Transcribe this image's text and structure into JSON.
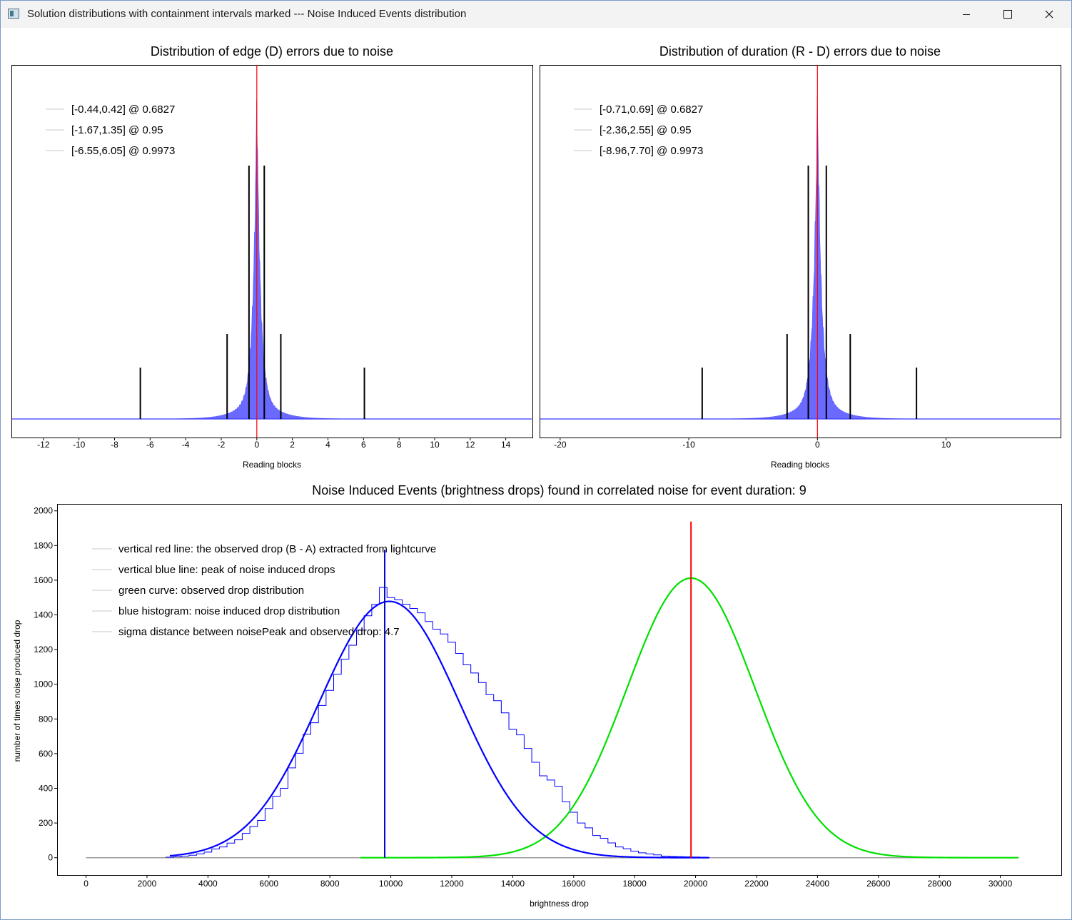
{
  "window": {
    "title": "Solution distributions with containment intervals marked --- Noise Induced Events distribution"
  },
  "chart_data": [
    {
      "type": "bar",
      "title": "Distribution of edge (D) errors due to noise",
      "xlabel": "Reading blocks",
      "ylabel": "",
      "xlim": [
        -13.8,
        15.5
      ],
      "xticks": [
        -12,
        -10,
        -8,
        -6,
        -4,
        -2,
        0,
        2,
        4,
        6,
        8,
        10,
        12,
        14
      ],
      "histogram_shape": {
        "center": 0.0,
        "core_width": 0.2,
        "tail_width": 0.9,
        "peak_frac": 0.9
      },
      "series_color": "#6a6aff",
      "legend": [
        {
          "text": "[-0.44,0.42] @ 0.6827"
        },
        {
          "text": "[-1.67,1.35] @ 0.95"
        },
        {
          "text": "[-6.55,6.05] @ 0.9973"
        }
      ],
      "intervals": [
        {
          "level": 0.6827,
          "lo": -0.44,
          "hi": 0.42
        },
        {
          "level": 0.95,
          "lo": -1.67,
          "hi": 1.35
        },
        {
          "level": 0.9973,
          "lo": -6.55,
          "hi": 6.05
        }
      ],
      "red_line_x": 0
    },
    {
      "type": "bar",
      "title": "Distribution of duration (R - D) errors due to noise",
      "xlabel": "Reading blocks",
      "ylabel": "",
      "xlim": [
        -21.6,
        18.9
      ],
      "xticks": [
        -20,
        -10,
        0,
        10
      ],
      "histogram_shape": {
        "center": 0.0,
        "core_width": 0.3,
        "tail_width": 1.3,
        "peak_frac": 0.9
      },
      "series_color": "#6a6aff",
      "legend": [
        {
          "text": "[-0.71,0.69] @ 0.6827"
        },
        {
          "text": "[-2.36,2.55] @ 0.95"
        },
        {
          "text": "[-8.96,7.70] @ 0.9973"
        }
      ],
      "intervals": [
        {
          "level": 0.6827,
          "lo": -0.71,
          "hi": 0.69
        },
        {
          "level": 0.95,
          "lo": -2.36,
          "hi": 2.55
        },
        {
          "level": 0.9973,
          "lo": -8.96,
          "hi": 7.7
        }
      ],
      "red_line_x": 0
    },
    {
      "type": "line",
      "title": "Noise Induced Events (brightness drops) found in correlated noise for event duration: 9",
      "xlabel": "brightness drop",
      "ylabel": "number of times noise produced drop",
      "xlim": [
        -950,
        32000
      ],
      "ylim": [
        -100,
        2040
      ],
      "xticks": [
        0,
        2000,
        4000,
        6000,
        8000,
        10000,
        12000,
        14000,
        16000,
        18000,
        20000,
        22000,
        24000,
        26000,
        28000,
        30000
      ],
      "yticks": [
        0,
        200,
        400,
        600,
        800,
        1000,
        1200,
        1400,
        1600,
        1800,
        2000
      ],
      "legend": [
        {
          "text": "vertical red line: the observed drop (B - A) extracted from lightcurve"
        },
        {
          "text": "vertical blue line: peak of noise induced drops"
        },
        {
          "text": "green curve: observed drop distribution"
        },
        {
          "text": "blue histogram: noise induced drop distribution"
        },
        {
          "text": "sigma distance between noisePeak and observed drop: 4.7"
        }
      ],
      "series": [
        {
          "name": "blue histogram",
          "color": "#0000ff",
          "step": 250,
          "x": [
            2750,
            3000,
            3250,
            3500,
            3750,
            4000,
            4250,
            4500,
            4750,
            5000,
            5250,
            5500,
            5750,
            6000,
            6250,
            6500,
            6750,
            7000,
            7250,
            7500,
            7750,
            8000,
            8250,
            8500,
            8750,
            9000,
            9250,
            9500,
            9750,
            10000,
            10250,
            10500,
            10750,
            11000,
            11250,
            11500,
            11750,
            12000,
            12250,
            12500,
            12750,
            13000,
            13250,
            13500,
            13750,
            14000,
            14250,
            14500,
            14750,
            15000,
            15250,
            15500,
            15750,
            16000,
            16250,
            16500,
            16750,
            17000,
            17250,
            17500,
            17750,
            18000,
            18250,
            18500,
            18750,
            19000,
            19250,
            19500,
            19750,
            20000,
            20250
          ],
          "values": [
            3,
            5,
            9,
            14,
            22,
            32,
            50,
            62,
            84,
            103,
            140,
            180,
            215,
            284,
            355,
            400,
            518,
            602,
            712,
            778,
            878,
            965,
            1058,
            1145,
            1225,
            1312,
            1395,
            1460,
            1558,
            1500,
            1487,
            1462,
            1437,
            1412,
            1362,
            1318,
            1290,
            1242,
            1178,
            1112,
            1065,
            1010,
            940,
            905,
            835,
            740,
            708,
            630,
            550,
            472,
            448,
            412,
            322,
            262,
            200,
            172,
            128,
            112,
            85,
            62,
            52,
            38,
            28,
            22,
            16,
            9,
            7,
            6,
            5,
            4,
            3
          ]
        },
        {
          "name": "blue curve",
          "color": "#0000ff",
          "type": "gaussian",
          "mean": 9950,
          "sigma": 2300,
          "amplitude": 1478,
          "x_range": [
            2750,
            20500
          ]
        },
        {
          "name": "green curve",
          "color": "#00e000",
          "type": "gaussian",
          "mean": 19850,
          "sigma": 2100,
          "amplitude": 1612,
          "x_range": [
            9000,
            30600
          ]
        },
        {
          "name": "gray baseline",
          "color": "#9a9a9a",
          "x": [
            0,
            30600
          ],
          "values": [
            0,
            0
          ]
        }
      ],
      "vlines": [
        {
          "name": "blue line",
          "x": 9800,
          "y": [
            0,
            1775
          ],
          "color": "#0000cc"
        },
        {
          "name": "red line",
          "x": 19850,
          "y": [
            0,
            1938
          ],
          "color": "#ff0000"
        }
      ]
    }
  ]
}
